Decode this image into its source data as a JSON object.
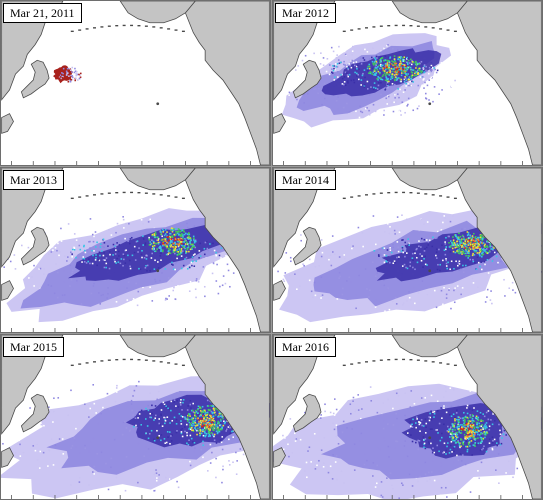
{
  "panels": [
    {
      "label": "Mar 21, 2011",
      "stage": 0
    },
    {
      "label": "Mar 2012",
      "stage": 1
    },
    {
      "label": "Mar 2013",
      "stage": 2
    },
    {
      "label": "Mar 2014",
      "stage": 3
    },
    {
      "label": "Mar 2015",
      "stage": 4
    },
    {
      "label": "Mar 2016",
      "stage": 5
    }
  ],
  "colors": {
    "land": "#c4c4c4",
    "coast": "#4a4a4a",
    "ocean": "#ffffff",
    "plume_light": "#c9c3f2",
    "plume_mid": "#8f88e0",
    "plume_dark": "#3a2fa8",
    "core_cyan": "#39c6e6",
    "core_green": "#43c95a",
    "core_yellow": "#f2e23a",
    "core_red": "#d8261a",
    "origin": "#a8211c"
  }
}
